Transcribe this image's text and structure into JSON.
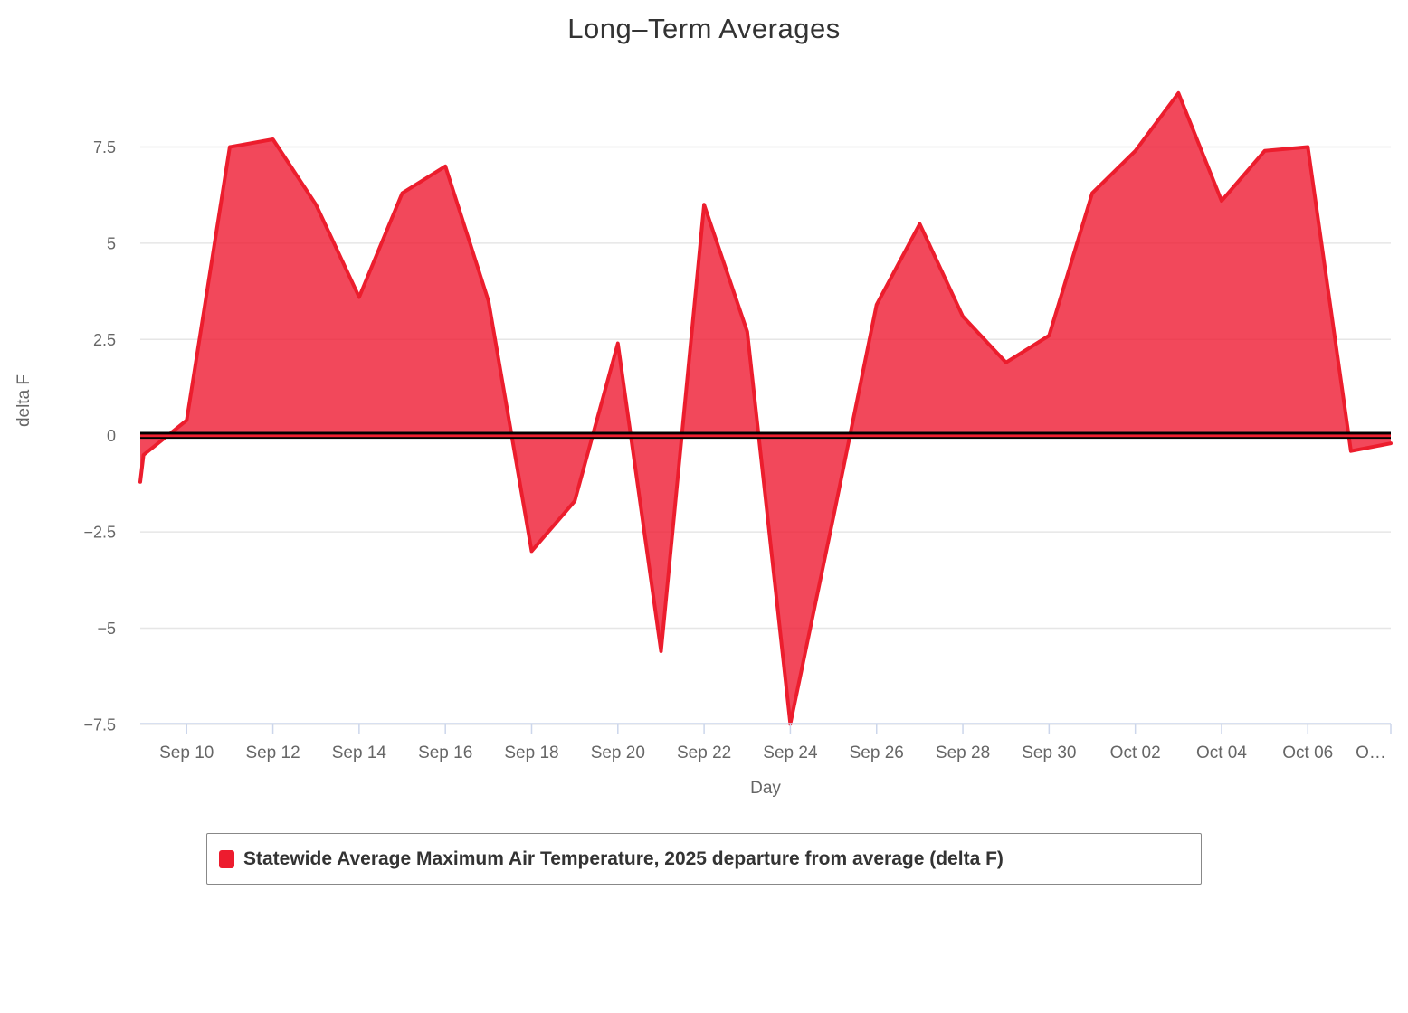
{
  "title": "Long–Term Averages",
  "colors": {
    "series_line": "#EC1D2D",
    "series_fill": "rgba(238,21,45,0.78)",
    "zero_line_black": "#000000",
    "zero_line_red": "#EE2030",
    "gridline": "#e6e6e6",
    "axis_line": "#ccd6eb",
    "title_text": "#333333",
    "axis_text": "#666666",
    "legend_border": "#888888",
    "legend_swatch": "#ED1C2E"
  },
  "chart_data": {
    "type": "area",
    "title": "Long–Term Averages",
    "xlabel": "Day",
    "ylabel": "delta F",
    "ylim": [
      -7.5,
      9.3
    ],
    "grid": "horizontal",
    "legend_position": "bottom",
    "zero_plotline": true,
    "yticks": [
      7.5,
      5,
      2.5,
      0,
      -2.5,
      -5,
      -7.5
    ],
    "ytick_labels": [
      "7.5",
      "5",
      "2.5",
      "0",
      "−2.5",
      "−5",
      "−7.5"
    ],
    "xticks": [
      {
        "label": "Sep 10",
        "day_index": 1
      },
      {
        "label": "Sep 12",
        "day_index": 3
      },
      {
        "label": "Sep 14",
        "day_index": 5
      },
      {
        "label": "Sep 16",
        "day_index": 7
      },
      {
        "label": "Sep 18",
        "day_index": 9
      },
      {
        "label": "Sep 20",
        "day_index": 11
      },
      {
        "label": "Sep 22",
        "day_index": 13
      },
      {
        "label": "Sep 24",
        "day_index": 15
      },
      {
        "label": "Sep 26",
        "day_index": 17
      },
      {
        "label": "Sep 28",
        "day_index": 19
      },
      {
        "label": "Sep 30",
        "day_index": 21
      },
      {
        "label": "Oct 02",
        "day_index": 23
      },
      {
        "label": "Oct 04",
        "day_index": 25
      },
      {
        "label": "Oct 06",
        "day_index": 27
      },
      {
        "label": "O…",
        "day_index": 29
      }
    ],
    "series": [
      {
        "name": "Statewide Average Maximum Air Temperature, 2025 departure from average (delta F)",
        "dates": [
          "Sep 9",
          "Sep 10",
          "Sep 11",
          "Sep 12",
          "Sep 13",
          "Sep 14",
          "Sep 15",
          "Sep 16",
          "Sep 17",
          "Sep 18",
          "Sep 19",
          "Sep 20",
          "Sep 21",
          "Sep 22",
          "Sep 23",
          "Sep 24",
          "Sep 25",
          "Sep 26",
          "Sep 27",
          "Sep 28",
          "Sep 29",
          "Sep 30",
          "Oct 1",
          "Oct 2",
          "Oct 3",
          "Oct 4",
          "Oct 5",
          "Oct 6",
          "Oct 7",
          "Oct 8"
        ],
        "values": [
          -0.5,
          0.4,
          7.5,
          7.7,
          6.0,
          3.6,
          6.3,
          7.0,
          3.5,
          -3.0,
          -1.7,
          2.4,
          -5.6,
          6.0,
          2.7,
          -7.5,
          -2.1,
          3.4,
          5.5,
          3.1,
          1.9,
          2.6,
          6.3,
          7.4,
          8.9,
          6.1,
          7.4,
          7.5,
          -0.4,
          -0.2
        ],
        "lead_in_edge_value": -1.2
      }
    ]
  }
}
